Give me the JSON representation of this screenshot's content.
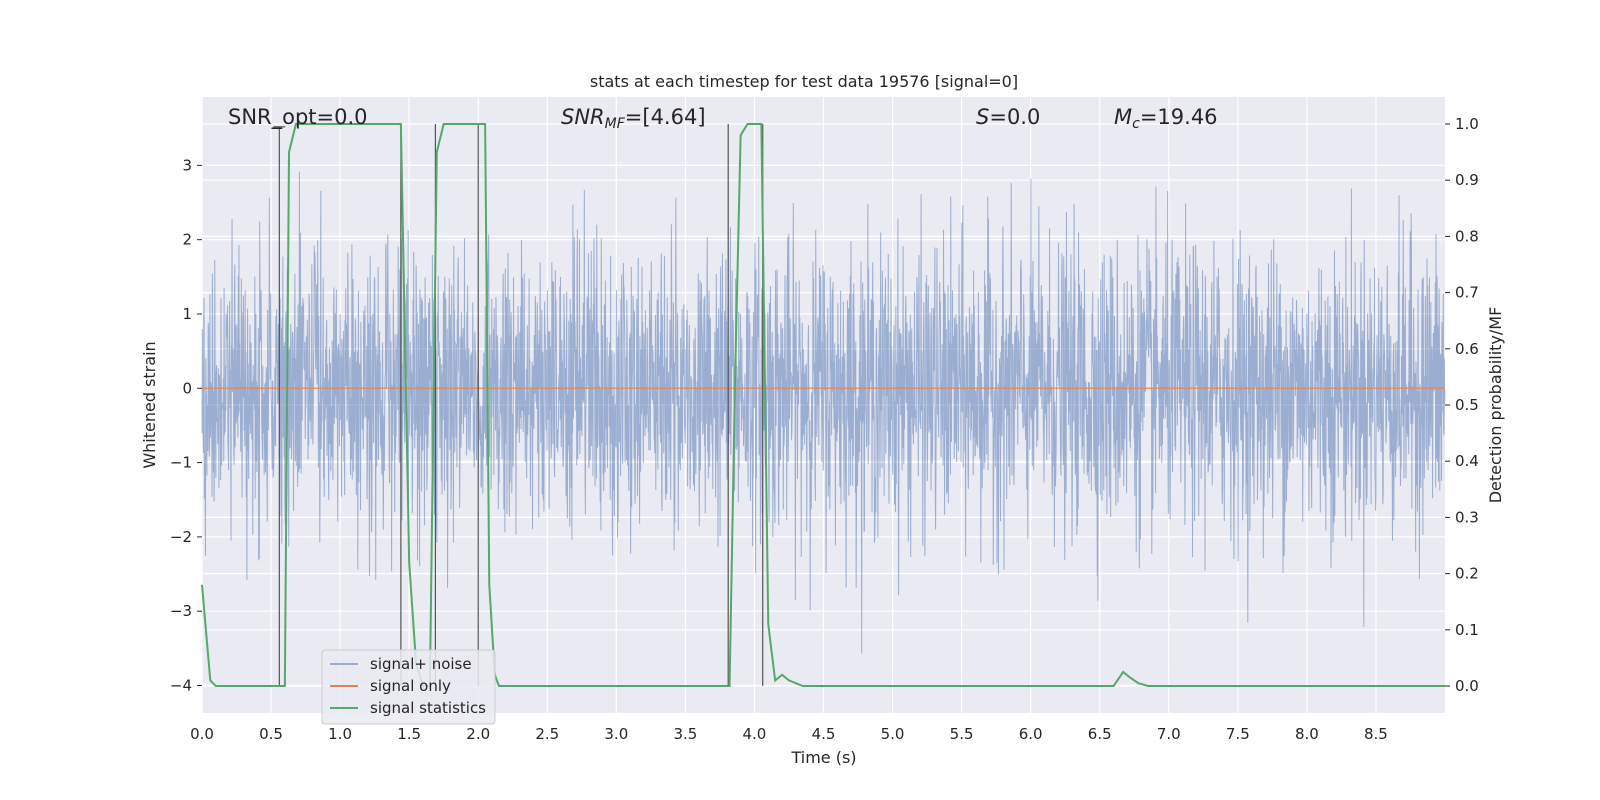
{
  "chart_data": {
    "type": "line",
    "title": "stats at each timestep for test data 19576 [signal=0]",
    "xlabel": "Time (s)",
    "ylabel": "Whitened strain",
    "y2label": "Detection probability/MF",
    "xlim": [
      0.0,
      9.0
    ],
    "ylim": [
      -4.37,
      3.92
    ],
    "y2lim": [
      -0.048,
      1.048
    ],
    "xticks": [
      0.0,
      0.5,
      1.0,
      1.5,
      2.0,
      2.5,
      3.0,
      3.5,
      4.0,
      4.5,
      5.0,
      5.5,
      6.0,
      6.5,
      7.0,
      7.5,
      8.0,
      8.5
    ],
    "xtick_labels": [
      "0.0",
      "0.5",
      "1.0",
      "1.5",
      "2.0",
      "2.5",
      "3.0",
      "3.5",
      "4.0",
      "4.5",
      "5.0",
      "5.5",
      "6.0",
      "6.5",
      "7.0",
      "7.5",
      "8.0",
      "8.5"
    ],
    "yticks": [
      -4,
      -3,
      -2,
      -1,
      0,
      1,
      2,
      3
    ],
    "ytick_labels": [
      "−4",
      "−3",
      "−2",
      "−1",
      "0",
      "1",
      "2",
      "3"
    ],
    "y2ticks": [
      0.0,
      0.1,
      0.2,
      0.3,
      0.4,
      0.5,
      0.6,
      0.7,
      0.8,
      0.9,
      1.0
    ],
    "y2tick_labels": [
      "0.0",
      "0.1",
      "0.2",
      "0.3",
      "0.4",
      "0.5",
      "0.6",
      "0.7",
      "0.8",
      "0.9",
      "1.0"
    ],
    "grid": true,
    "legend_position": "lower-left",
    "annotations": {
      "snr_opt": "SNR_opt=0.0",
      "snr_mf_main": "SNR",
      "snr_mf_sub": "MF",
      "snr_mf_value": "=[4.64]",
      "s_main": "S",
      "s_value": "=0.0",
      "mc_main": "M",
      "mc_sub": "c",
      "mc_value": "=19.46"
    },
    "series": [
      {
        "name": "signal+ noise",
        "color": "#4c72b0",
        "axis": "left",
        "description_values": {
          "duration": 9.0,
          "typical_range": [
            -2.2,
            2.4
          ],
          "peak_range": [
            -4.0,
            3.6
          ]
        }
      },
      {
        "name": "signal only",
        "color": "#dd8452",
        "axis": "left",
        "x": [
          0.0,
          9.0
        ],
        "y": [
          0.0,
          0.0
        ]
      },
      {
        "name": "signal statistics",
        "color": "#55a868",
        "axis": "right",
        "x": [
          0.0,
          0.06,
          0.1,
          0.56,
          0.6,
          0.63,
          0.68,
          0.72,
          0.75,
          1.44,
          1.5,
          1.55,
          1.6,
          1.65,
          1.7,
          1.75,
          1.8,
          2.05,
          2.08,
          2.12,
          2.15,
          3.82,
          3.86,
          3.9,
          3.95,
          4.05,
          4.1,
          4.15,
          4.2,
          4.25,
          4.3,
          4.35,
          4.4,
          6.6,
          6.67,
          6.72,
          6.78,
          6.85,
          9.0
        ],
        "y": [
          0.18,
          0.01,
          0.0,
          0.0,
          0.0,
          0.95,
          1.0,
          1.0,
          1.0,
          1.0,
          0.22,
          0.04,
          0.0,
          0.0,
          0.95,
          1.0,
          1.0,
          1.0,
          0.18,
          0.02,
          0.0,
          0.0,
          0.55,
          0.98,
          1.0,
          1.0,
          0.11,
          0.01,
          0.02,
          0.01,
          0.005,
          0.0,
          0.0,
          0.0,
          0.025,
          0.015,
          0.005,
          0.0,
          0.0
        ]
      }
    ],
    "vertical_markers": [
      {
        "x": 0.56,
        "y_top": 0.995,
        "y_bottom": 0.0,
        "axis": "right"
      },
      {
        "x": 1.44,
        "y_top": 1.0,
        "y_bottom": 0.0,
        "axis": "right"
      },
      {
        "x": 1.69,
        "y_top": 1.0,
        "y_bottom": 0.0,
        "axis": "right"
      },
      {
        "x": 2.0,
        "y_top": 1.0,
        "y_bottom": 0.0,
        "axis": "right"
      },
      {
        "x": 3.81,
        "y_top": 1.0,
        "y_bottom": 0.0,
        "axis": "right"
      },
      {
        "x": 4.06,
        "y_top": 1.0,
        "y_bottom": 0.0,
        "axis": "right"
      }
    ]
  }
}
